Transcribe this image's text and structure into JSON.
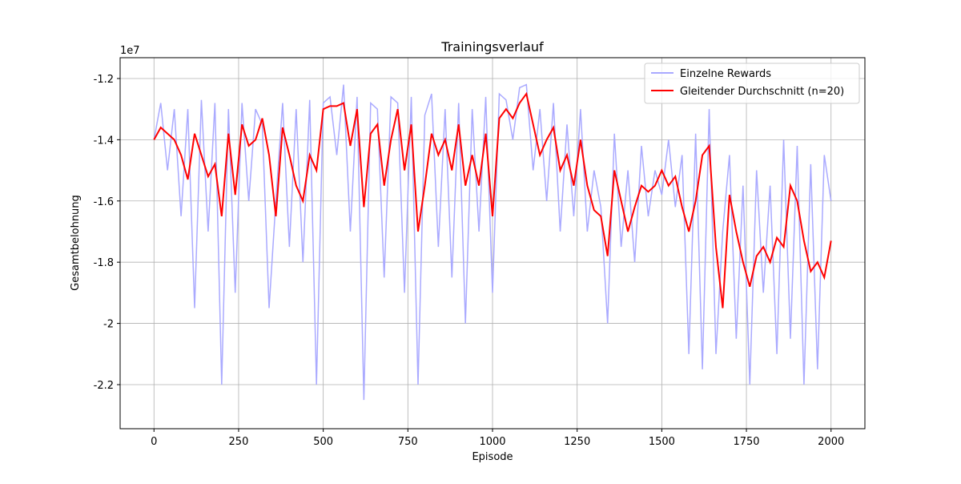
{
  "chart_data": {
    "type": "line",
    "title": "Trainingsverlauf",
    "x_label": "Episode",
    "y_label": "Gesamtbelohnung",
    "y_offset_label": "1e7",
    "x": [
      0,
      20,
      40,
      60,
      80,
      100,
      120,
      140,
      160,
      180,
      200,
      220,
      240,
      260,
      280,
      300,
      320,
      340,
      360,
      380,
      400,
      420,
      440,
      460,
      480,
      500,
      520,
      540,
      560,
      580,
      600,
      620,
      640,
      660,
      680,
      700,
      720,
      740,
      760,
      780,
      800,
      820,
      840,
      860,
      880,
      900,
      920,
      940,
      960,
      980,
      1000,
      1020,
      1040,
      1060,
      1080,
      1100,
      1120,
      1140,
      1160,
      1180,
      1200,
      1220,
      1240,
      1260,
      1280,
      1300,
      1320,
      1340,
      1360,
      1380,
      1400,
      1420,
      1440,
      1460,
      1480,
      1500,
      1520,
      1540,
      1560,
      1580,
      1600,
      1620,
      1640,
      1660,
      1680,
      1700,
      1720,
      1740,
      1760,
      1780,
      1800,
      1820,
      1840,
      1860,
      1880,
      1900,
      1920,
      1940,
      1960,
      1980,
      2000
    ],
    "series": [
      {
        "name": "Einzelne Rewards",
        "color": "#aaaaff",
        "values": [
          -1.4,
          -1.28,
          -1.5,
          -1.3,
          -1.65,
          -1.3,
          -1.95,
          -1.27,
          -1.7,
          -1.28,
          -2.2,
          -1.3,
          -1.9,
          -1.28,
          -1.6,
          -1.3,
          -1.35,
          -1.95,
          -1.6,
          -1.28,
          -1.75,
          -1.3,
          -1.8,
          -1.27,
          -2.2,
          -1.28,
          -1.26,
          -1.45,
          -1.22,
          -1.7,
          -1.26,
          -2.25,
          -1.28,
          -1.3,
          -1.85,
          -1.26,
          -1.28,
          -1.9,
          -1.26,
          -2.2,
          -1.32,
          -1.25,
          -1.75,
          -1.3,
          -1.85,
          -1.28,
          -2.0,
          -1.3,
          -1.7,
          -1.26,
          -1.9,
          -1.25,
          -1.27,
          -1.4,
          -1.23,
          -1.22,
          -1.5,
          -1.3,
          -1.6,
          -1.28,
          -1.7,
          -1.35,
          -1.65,
          -1.3,
          -1.7,
          -1.5,
          -1.62,
          -2.0,
          -1.38,
          -1.75,
          -1.5,
          -1.8,
          -1.42,
          -1.65,
          -1.5,
          -1.58,
          -1.4,
          -1.62,
          -1.45,
          -2.1,
          -1.38,
          -2.15,
          -1.3,
          -2.1,
          -1.7,
          -1.45,
          -2.05,
          -1.55,
          -2.2,
          -1.5,
          -1.9,
          -1.55,
          -2.1,
          -1.4,
          -2.05,
          -1.42,
          -2.2,
          -1.48,
          -2.15,
          -1.45,
          -1.6
        ]
      },
      {
        "name": "Gleitender Durchschnitt (n=20)",
        "color": "#ff0000",
        "values": [
          -1.4,
          -1.36,
          -1.38,
          -1.4,
          -1.45,
          -1.53,
          -1.38,
          -1.45,
          -1.52,
          -1.48,
          -1.65,
          -1.38,
          -1.58,
          -1.35,
          -1.42,
          -1.4,
          -1.33,
          -1.45,
          -1.65,
          -1.36,
          -1.45,
          -1.55,
          -1.6,
          -1.45,
          -1.5,
          -1.3,
          -1.29,
          -1.29,
          -1.28,
          -1.42,
          -1.3,
          -1.62,
          -1.38,
          -1.35,
          -1.55,
          -1.4,
          -1.3,
          -1.5,
          -1.35,
          -1.7,
          -1.55,
          -1.38,
          -1.45,
          -1.4,
          -1.5,
          -1.35,
          -1.55,
          -1.45,
          -1.55,
          -1.38,
          -1.65,
          -1.33,
          -1.3,
          -1.33,
          -1.28,
          -1.25,
          -1.35,
          -1.45,
          -1.4,
          -1.36,
          -1.5,
          -1.45,
          -1.55,
          -1.4,
          -1.55,
          -1.63,
          -1.65,
          -1.78,
          -1.5,
          -1.6,
          -1.7,
          -1.62,
          -1.55,
          -1.57,
          -1.55,
          -1.5,
          -1.55,
          -1.52,
          -1.62,
          -1.7,
          -1.6,
          -1.45,
          -1.42,
          -1.75,
          -1.95,
          -1.58,
          -1.7,
          -1.8,
          -1.88,
          -1.78,
          -1.75,
          -1.8,
          -1.72,
          -1.75,
          -1.55,
          -1.6,
          -1.73,
          -1.83,
          -1.8,
          -1.85,
          -1.73
        ]
      }
    ],
    "xlim": [
      -100,
      2100
    ],
    "ylim": [
      -2.344,
      -1.132
    ],
    "xticks": [
      0,
      250,
      500,
      750,
      1000,
      1250,
      1500,
      1750,
      2000
    ],
    "yticks": [
      -2.2,
      -2.0,
      -1.8,
      -1.6,
      -1.4,
      -1.2
    ],
    "grid": true,
    "legend": "upper right"
  }
}
